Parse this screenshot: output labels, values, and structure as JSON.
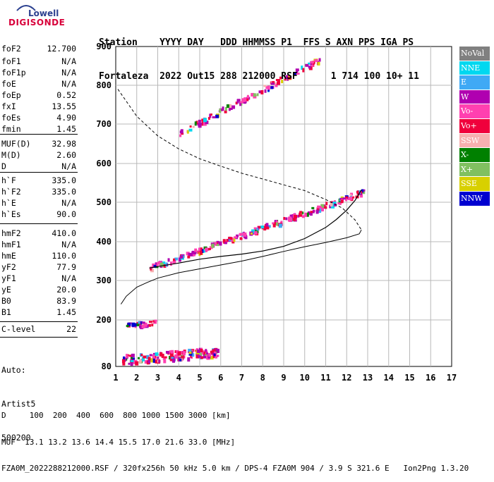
{
  "logo": {
    "top": "Lowell",
    "bottom": "DIGISONDE"
  },
  "header": {
    "labels": [
      "Station",
      "YYYY DAY",
      "DDD",
      "HHMMSS",
      "P1",
      "FFS",
      "S",
      "AXN",
      "PPS",
      "IGA",
      "PS"
    ],
    "line1": "Station    YYYY DAY   DDD HHMMSS P1  FFS S AXN PPS IGA PS",
    "line2": "Fortaleza  2022 Out15 288 212000 RSF      1 714 100 10+ 11"
  },
  "params": [
    {
      "name": "foF2",
      "value": "12.700"
    },
    {
      "name": "foF1",
      "value": "N/A"
    },
    {
      "name": "foF1p",
      "value": "N/A"
    },
    {
      "name": "foE",
      "value": "N/A"
    },
    {
      "name": "foEp",
      "value": "0.52"
    },
    {
      "name": "fxI",
      "value": "13.55"
    },
    {
      "name": "foEs",
      "value": "4.90"
    },
    {
      "name": "fmin",
      "value": "1.45"
    },
    {
      "name": "MUF(D)",
      "value": "32.98"
    },
    {
      "name": "M(D)",
      "value": "2.60"
    },
    {
      "name": "D",
      "value": "N/A"
    },
    {
      "name": "h`F",
      "value": "335.0"
    },
    {
      "name": "h`F2",
      "value": "335.0"
    },
    {
      "name": "h`E",
      "value": "N/A"
    },
    {
      "name": "h`Es",
      "value": "90.0"
    },
    {
      "name": "hmF2",
      "value": "410.0"
    },
    {
      "name": "hmF1",
      "value": "N/A"
    },
    {
      "name": "hmE",
      "value": "110.0"
    },
    {
      "name": "yF2",
      "value": "77.9"
    },
    {
      "name": "yF1",
      "value": "N/A"
    },
    {
      "name": "yE",
      "value": "20.0"
    },
    {
      "name": "B0",
      "value": "83.9"
    },
    {
      "name": "B1",
      "value": "1.45"
    },
    {
      "name": "C-level",
      "value": "22"
    }
  ],
  "auto": {
    "line1": "Auto:",
    "line2": "Artist5",
    "line3": "500200"
  },
  "legend": [
    {
      "label": "NoVal",
      "color": "#808080"
    },
    {
      "label": "NNE",
      "color": "#00d8f0"
    },
    {
      "label": "E",
      "color": "#3fa9f5"
    },
    {
      "label": "W",
      "color": "#b000b0"
    },
    {
      "label": "Vo-",
      "color": "#ff40b0"
    },
    {
      "label": "Vo+",
      "color": "#f0003c"
    },
    {
      "label": "SSW",
      "color": "#f7b0b0"
    },
    {
      "label": "X-",
      "color": "#008000"
    },
    {
      "label": "X+",
      "color": "#80c060"
    },
    {
      "label": "SSE",
      "color": "#d8d000"
    },
    {
      "label": "NNW",
      "color": "#0000d0"
    }
  ],
  "footer": {
    "d_line": "D     100  200  400  600  800 1000 1500 3000 [km]",
    "muf_line": "MUF  13.1 13.2 13.6 14.4 15.5 17.0 21.6 33.0 [MHz]",
    "file_line": "FZA0M_2022288212000.RSF / 320fx256h 50 kHz 5.0 km / DPS-4 FZA0M 904 / 3.9 S 321.6 E   Ion2Png 1.3.20"
  },
  "chart_data": {
    "type": "scatter",
    "xlim": [
      1,
      17
    ],
    "ylim": [
      80,
      900
    ],
    "x_ticks": [
      "1",
      "2",
      "3",
      "4",
      "5",
      "6",
      "7",
      "8",
      "9",
      "10",
      "11",
      "12",
      "13",
      "14",
      "15",
      "16",
      "17"
    ],
    "y_ticks": [
      "80",
      "200",
      "300",
      "400",
      "500",
      "600",
      "700",
      "800",
      "900"
    ],
    "y_tick_values": [
      80,
      200,
      300,
      400,
      500,
      600,
      700,
      800,
      900
    ],
    "grid": true,
    "bottom_trace": [
      [
        2.6,
        332
      ],
      [
        3,
        336
      ],
      [
        4,
        345
      ],
      [
        5,
        355
      ],
      [
        6,
        362
      ],
      [
        7,
        368
      ],
      [
        8,
        376
      ],
      [
        9,
        388
      ],
      [
        10,
        408
      ],
      [
        11,
        436
      ],
      [
        11.5,
        456
      ],
      [
        12,
        480
      ],
      [
        12.4,
        505
      ],
      [
        12.7,
        532
      ]
    ],
    "virtual_height_curve": [
      [
        1.25,
        240
      ],
      [
        1.5,
        260
      ],
      [
        2,
        283
      ],
      [
        2.5,
        295
      ],
      [
        3,
        306
      ],
      [
        4,
        320
      ],
      [
        5,
        330
      ],
      [
        6,
        340
      ],
      [
        7,
        350
      ],
      [
        8,
        362
      ],
      [
        9,
        375
      ],
      [
        10,
        387
      ],
      [
        11,
        398
      ],
      [
        12,
        410
      ],
      [
        12.6,
        420
      ],
      [
        12.7,
        430
      ]
    ],
    "profile_curve": [
      [
        1.1,
        790
      ],
      [
        2,
        720
      ],
      [
        3,
        670
      ],
      [
        4,
        637
      ],
      [
        5,
        612
      ],
      [
        6,
        593
      ],
      [
        7,
        575
      ],
      [
        8,
        560
      ],
      [
        9,
        545
      ],
      [
        10,
        530
      ],
      [
        11,
        507
      ],
      [
        11.8,
        485
      ],
      [
        12.4,
        455
      ],
      [
        12.7,
        430
      ]
    ],
    "echo_bands": [
      {
        "x0": 2.6,
        "y0": 335,
        "x1": 12.8,
        "y1": 530,
        "n": 220
      },
      {
        "x0": 4.0,
        "y0": 680,
        "x1": 10.7,
        "y1": 870,
        "n": 110
      },
      {
        "x0": 1.3,
        "y0": 100,
        "x1": 5.8,
        "y1": 120,
        "n": 160
      },
      {
        "x0": 1.4,
        "y0": 188,
        "x1": 2.9,
        "y1": 196,
        "n": 30
      }
    ]
  }
}
